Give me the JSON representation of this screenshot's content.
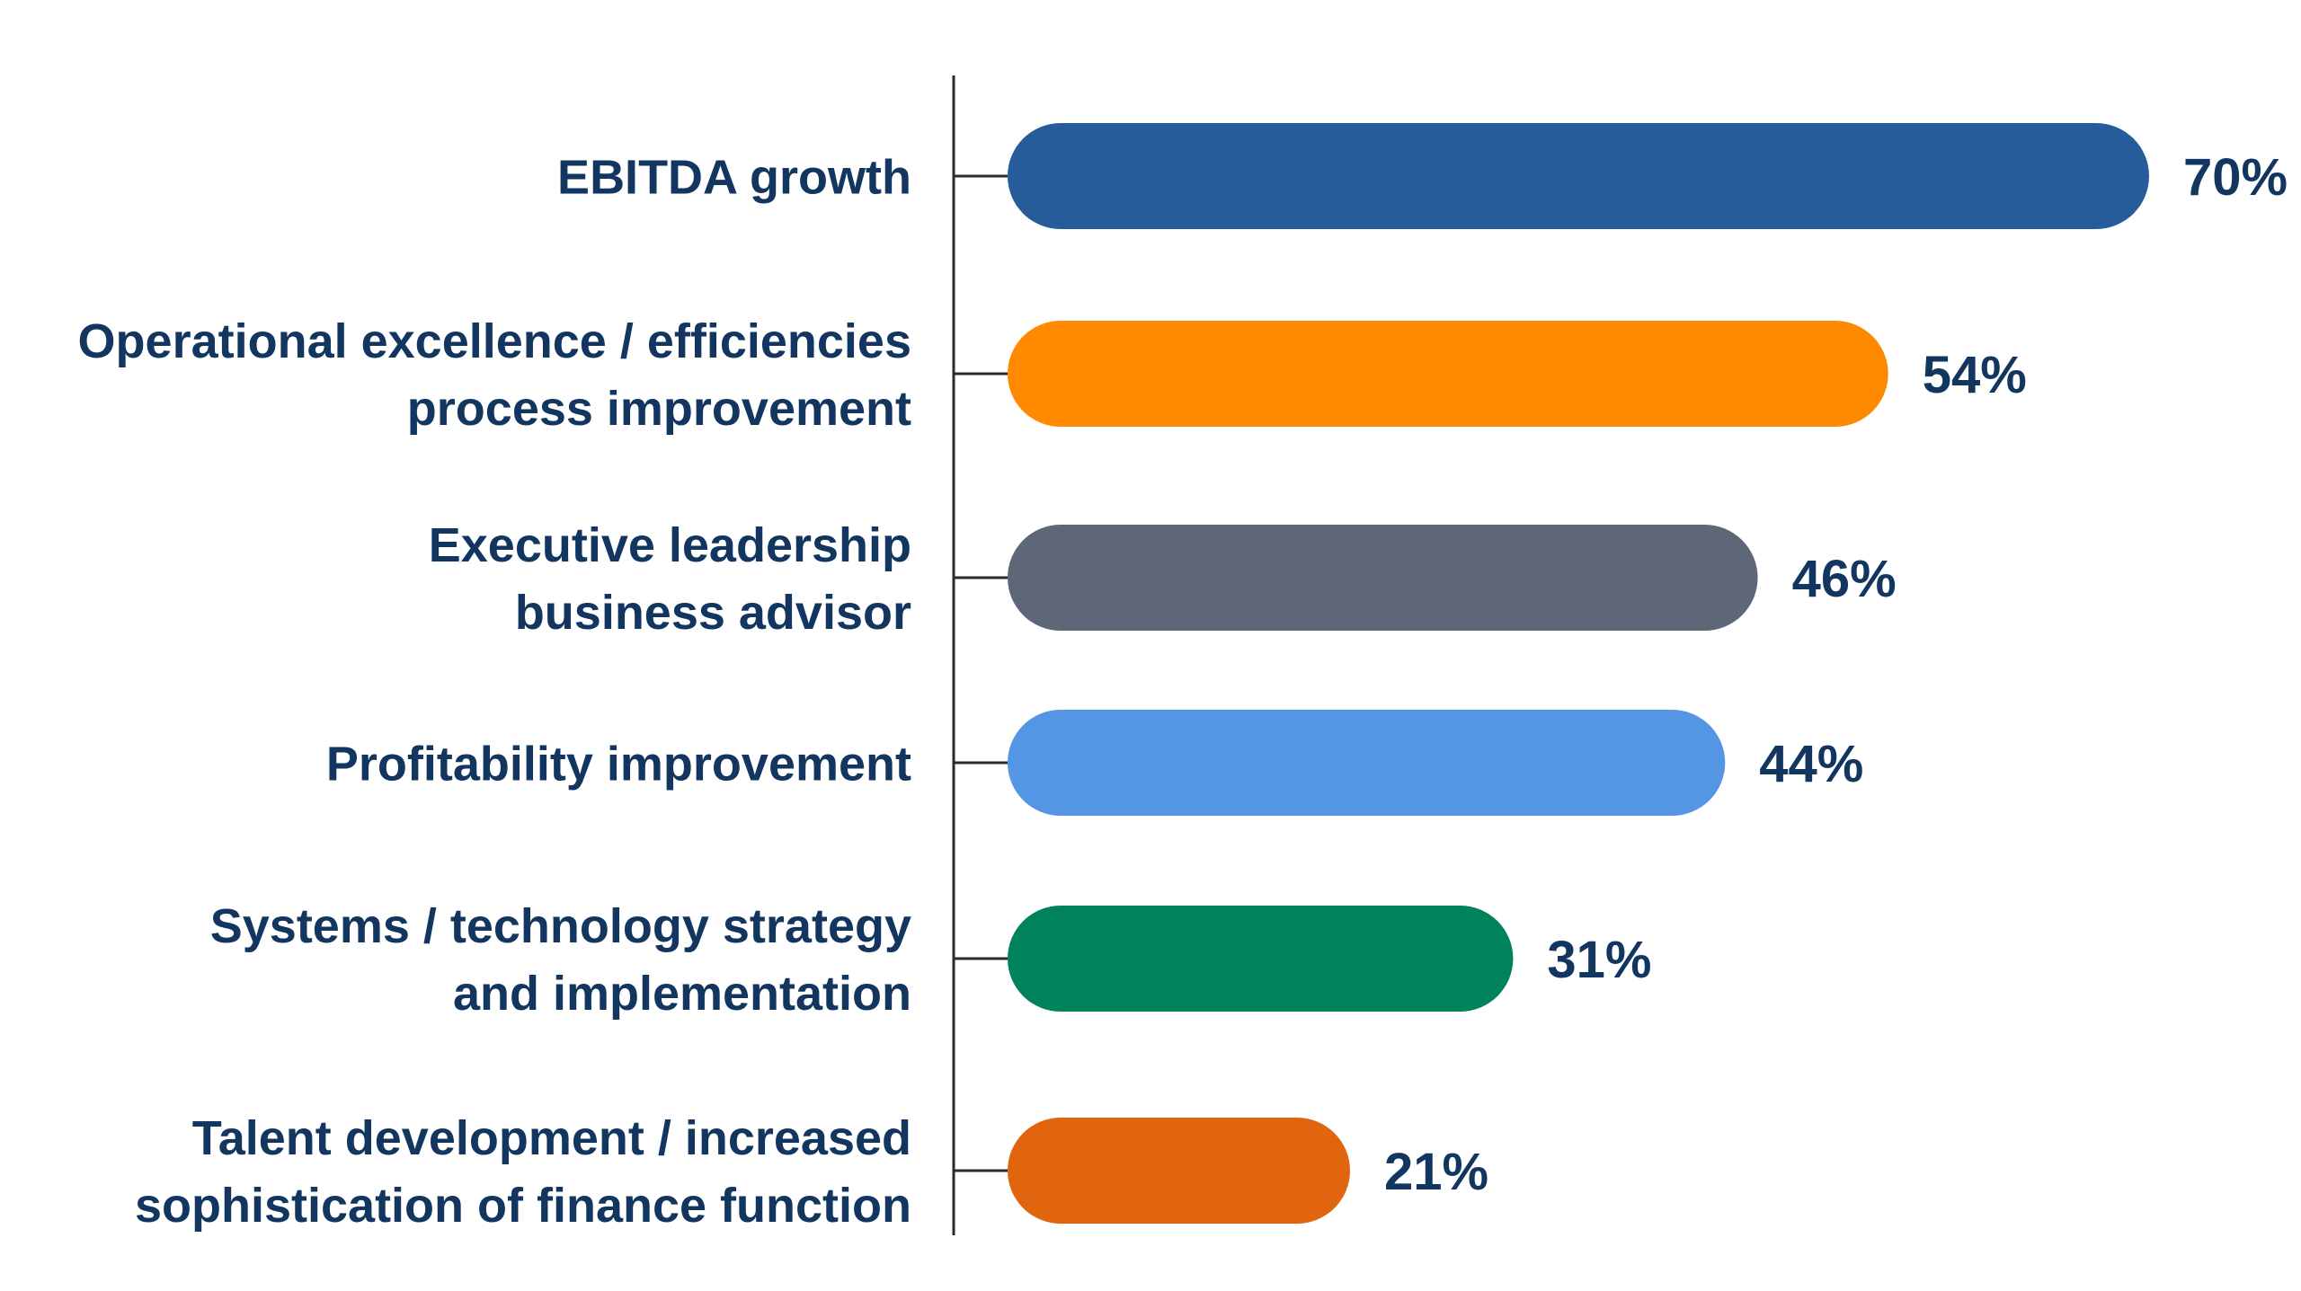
{
  "colors": {
    "text": "#123660",
    "axis": "#2b2b2b"
  },
  "chart_data": {
    "type": "bar",
    "orientation": "horizontal",
    "xlim": [
      0,
      70
    ],
    "grid": false,
    "legend": "none",
    "categories": [
      [
        "EBITDA growth"
      ],
      [
        "Operational excellence / efficiencies",
        "process improvement"
      ],
      [
        "Executive leadership",
        "business advisor"
      ],
      [
        "Profitability improvement"
      ],
      [
        "Systems / technology strategy",
        "and implementation"
      ],
      [
        "Talent development / increased",
        "sophistication of finance function"
      ]
    ],
    "values": [
      70,
      54,
      46,
      44,
      31,
      21
    ],
    "value_labels": [
      "70%",
      "54%",
      "46%",
      "44%",
      "31%",
      "21%"
    ],
    "bar_colors": [
      "#255c99",
      "#ff8a00",
      "#5d6777",
      "#5496e3",
      "#00825d",
      "#e0650e"
    ]
  }
}
